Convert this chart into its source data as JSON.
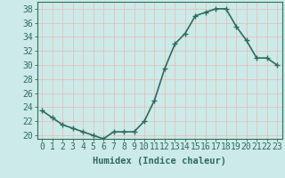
{
  "x": [
    0,
    1,
    2,
    3,
    4,
    5,
    6,
    7,
    8,
    9,
    10,
    11,
    12,
    13,
    14,
    15,
    16,
    17,
    18,
    19,
    20,
    21,
    22,
    23
  ],
  "y": [
    23.5,
    22.5,
    21.5,
    21.0,
    20.5,
    20.0,
    19.5,
    20.5,
    20.5,
    20.5,
    22.0,
    25.0,
    29.5,
    33.0,
    34.5,
    37.0,
    37.5,
    38.0,
    38.0,
    35.5,
    33.5,
    31.0,
    31.0,
    30.0
  ],
  "line_color": "#2e6b5e",
  "marker": "+",
  "marker_size": 4,
  "bg_color": "#cceae7",
  "grid_color": "#e8b8b8",
  "xlabel": "Humidex (Indice chaleur)",
  "yticks": [
    20,
    22,
    24,
    26,
    28,
    30,
    32,
    34,
    36,
    38
  ],
  "xlim": [
    -0.5,
    23.5
  ],
  "ylim": [
    19.5,
    39.0
  ],
  "xlabel_fontsize": 7.5,
  "tick_fontsize": 7,
  "text_color": "#2e6b5e",
  "axis_color": "#2e6b5e",
  "linewidth": 1.2
}
